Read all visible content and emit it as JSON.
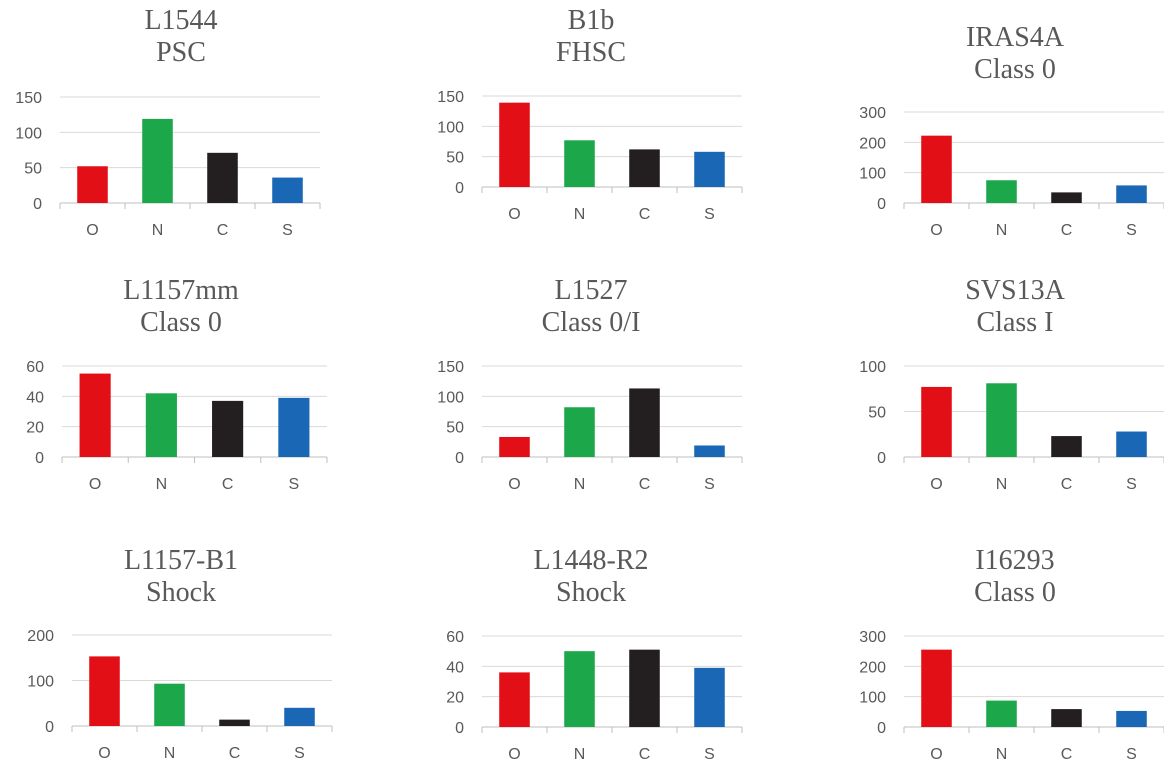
{
  "colors": {
    "O": "#e30f17",
    "N": "#1ca74a",
    "C": "#231f20",
    "S": "#1a68b5"
  },
  "chart_data": [
    {
      "type": "bar",
      "title": [
        "L1544",
        "PSC"
      ],
      "categories": [
        "O",
        "N",
        "C",
        "S"
      ],
      "values": [
        52,
        119,
        71,
        36
      ],
      "ylim": [
        0,
        150
      ],
      "yticks": [
        0,
        50,
        100,
        150
      ],
      "grid": true
    },
    {
      "type": "bar",
      "title": [
        "B1b",
        "FHSC"
      ],
      "categories": [
        "O",
        "N",
        "C",
        "S"
      ],
      "values": [
        139,
        77,
        62,
        58
      ],
      "ylim": [
        0,
        150
      ],
      "yticks": [
        0,
        50,
        100,
        150
      ],
      "grid": true
    },
    {
      "type": "bar",
      "title": [
        "IRAS4A",
        "Class 0"
      ],
      "categories": [
        "O",
        "N",
        "C",
        "S"
      ],
      "values": [
        222,
        75,
        35,
        58
      ],
      "ylim": [
        0,
        300
      ],
      "yticks": [
        0,
        100,
        200,
        300
      ],
      "grid": true
    },
    {
      "type": "bar",
      "title": [
        "L1157mm",
        "Class 0"
      ],
      "categories": [
        "O",
        "N",
        "C",
        "S"
      ],
      "values": [
        55,
        42,
        37,
        39
      ],
      "ylim": [
        0,
        60
      ],
      "yticks": [
        0,
        20,
        40,
        60
      ],
      "grid": true
    },
    {
      "type": "bar",
      "title": [
        "L1527",
        "Class 0/I"
      ],
      "categories": [
        "O",
        "N",
        "C",
        "S"
      ],
      "values": [
        33,
        82,
        113,
        19
      ],
      "ylim": [
        0,
        150
      ],
      "yticks": [
        0,
        50,
        100,
        150
      ],
      "grid": true
    },
    {
      "type": "bar",
      "title": [
        "SVS13A",
        "Class I"
      ],
      "categories": [
        "O",
        "N",
        "C",
        "S"
      ],
      "values": [
        77,
        81,
        23,
        28
      ],
      "ylim": [
        0,
        100
      ],
      "yticks": [
        0,
        50,
        100
      ],
      "grid": true
    },
    {
      "type": "bar",
      "title": [
        "L1157-B1",
        "Shock"
      ],
      "categories": [
        "O",
        "N",
        "C",
        "S"
      ],
      "values": [
        153,
        93,
        14,
        40
      ],
      "ylim": [
        0,
        200
      ],
      "yticks": [
        0,
        100,
        200
      ],
      "grid": true
    },
    {
      "type": "bar",
      "title": [
        "L1448-R2",
        "Shock"
      ],
      "categories": [
        "O",
        "N",
        "C",
        "S"
      ],
      "values": [
        36,
        50,
        51,
        39
      ],
      "ylim": [
        0,
        60
      ],
      "yticks": [
        0,
        20,
        40,
        60
      ],
      "grid": true
    },
    {
      "type": "bar",
      "title": [
        "I16293",
        "Class 0"
      ],
      "categories": [
        "O",
        "N",
        "C",
        "S"
      ],
      "values": [
        255,
        87,
        59,
        53
      ],
      "ylim": [
        0,
        300
      ],
      "yticks": [
        0,
        100,
        200,
        300
      ],
      "grid": true
    }
  ]
}
